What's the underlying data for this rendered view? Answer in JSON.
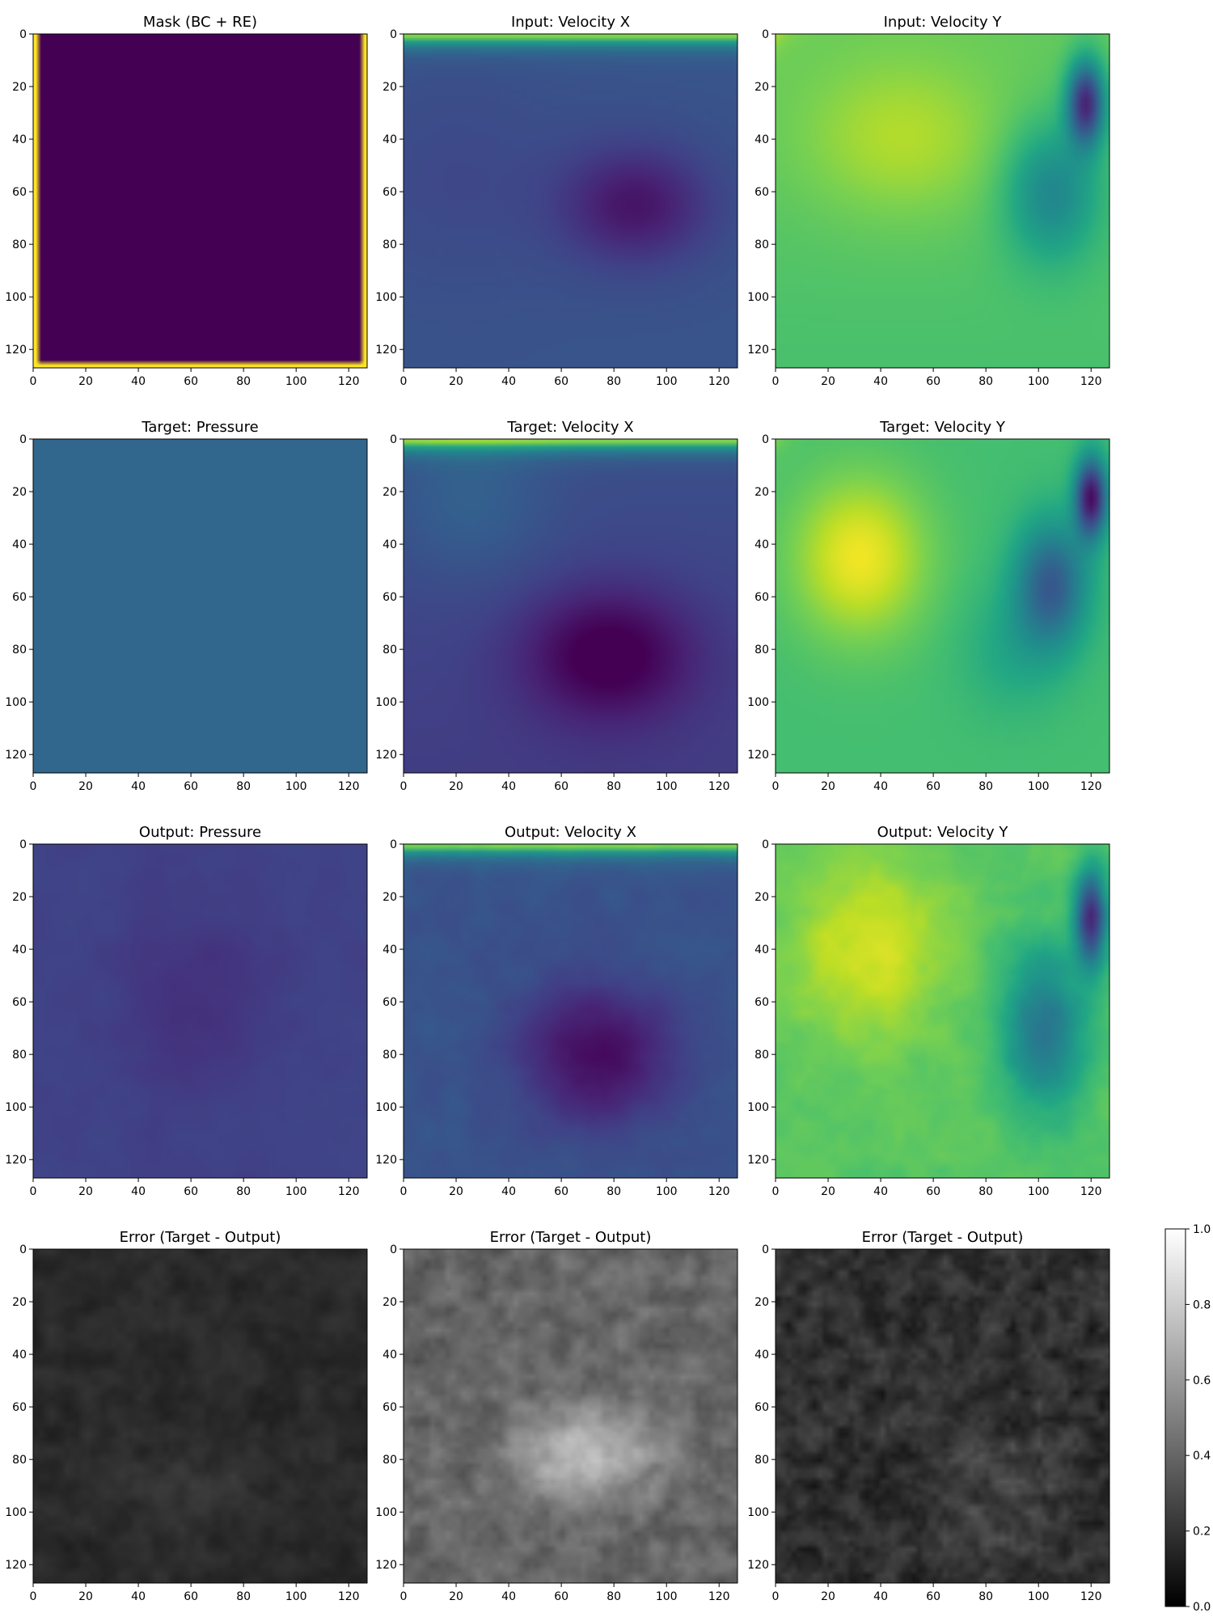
{
  "chart_data": {
    "type": "heatmap",
    "grid": "4x3",
    "x_ticks": [
      0,
      20,
      40,
      60,
      80,
      100,
      120
    ],
    "y_ticks": [
      0,
      20,
      40,
      60,
      80,
      100,
      120
    ],
    "xlim": [
      0,
      127
    ],
    "ylim": [
      127,
      0
    ],
    "colorbar": {
      "colormap": "gray",
      "ticks": [
        "0.0",
        "0.2",
        "0.4",
        "0.6",
        "0.8",
        "1.0"
      ],
      "range": [
        0.0,
        1.0
      ]
    },
    "panels": [
      {
        "title": "Mask (BC + RE)",
        "colormap": "viridis",
        "field": "mask"
      },
      {
        "title": "Input: Velocity X",
        "colormap": "viridis",
        "field": "in_vx"
      },
      {
        "title": "Input: Velocity Y",
        "colormap": "viridis",
        "field": "in_vy"
      },
      {
        "title": "Target: Pressure",
        "colormap": "viridis",
        "field": "tgt_p"
      },
      {
        "title": "Target: Velocity X",
        "colormap": "viridis",
        "field": "tgt_vx"
      },
      {
        "title": "Target: Velocity Y",
        "colormap": "viridis",
        "field": "tgt_vy"
      },
      {
        "title": "Output: Pressure",
        "colormap": "viridis",
        "field": "out_p"
      },
      {
        "title": "Output: Velocity X",
        "colormap": "viridis",
        "field": "out_vx"
      },
      {
        "title": "Output: Velocity Y",
        "colormap": "viridis",
        "field": "out_vy"
      },
      {
        "title": "Error (Target - Output)",
        "colormap": "gray",
        "field": "err_p"
      },
      {
        "title": "Error (Target - Output)",
        "colormap": "gray",
        "field": "err_vx"
      },
      {
        "title": "Error (Target - Output)",
        "colormap": "gray",
        "field": "err_vy"
      }
    ]
  }
}
